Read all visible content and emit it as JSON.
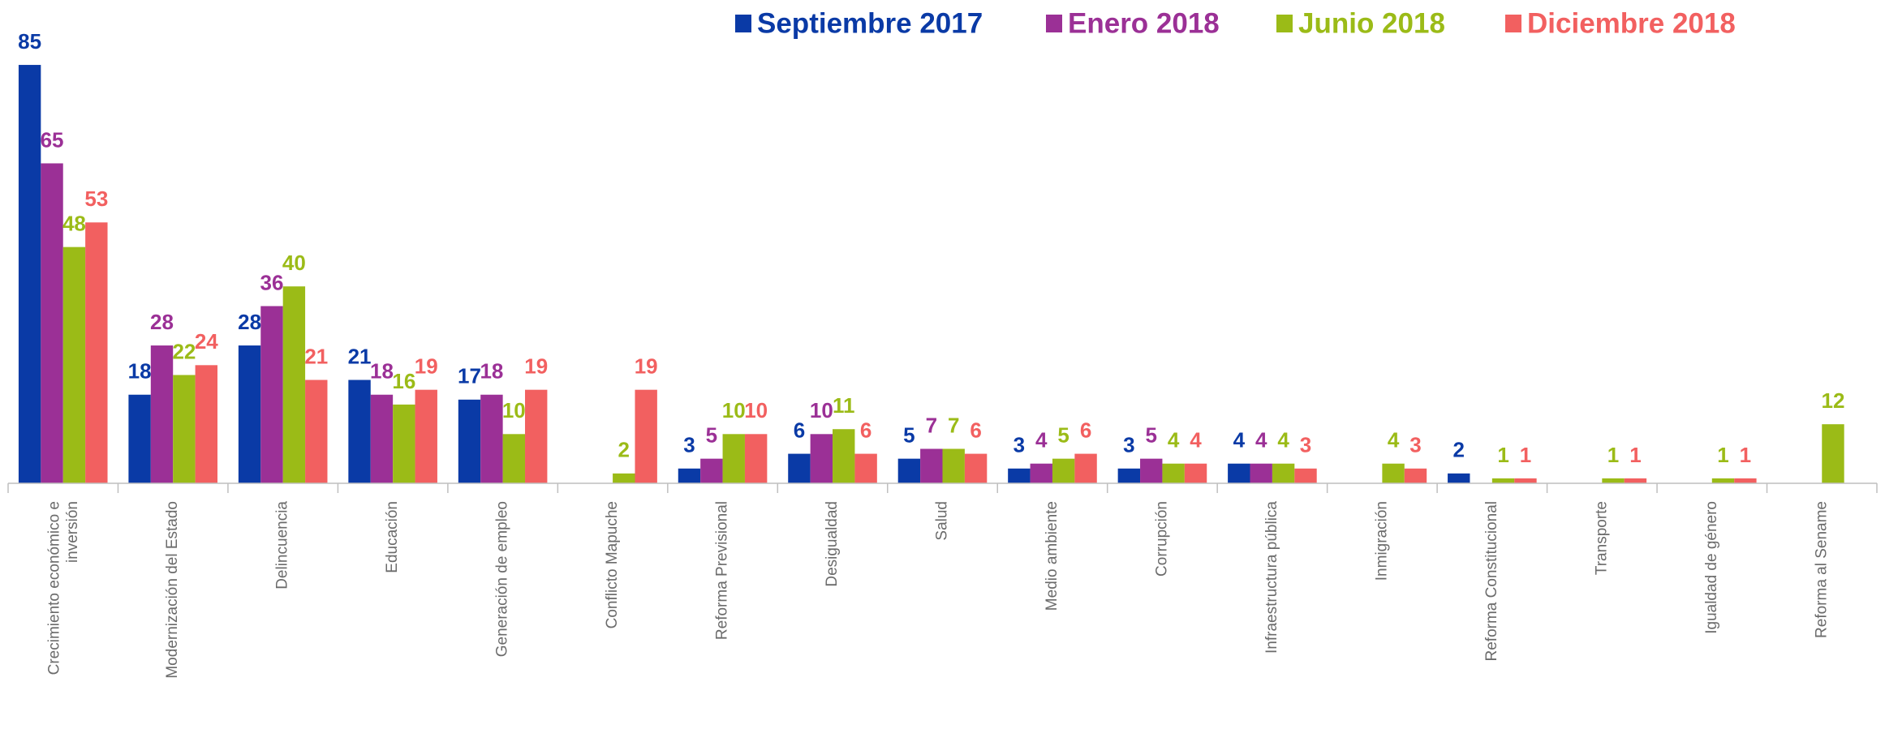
{
  "chart_data": {
    "type": "bar",
    "categories": [
      "Crecimiento económico e inversión",
      "Modernización del Estado",
      "Delincuencia",
      "Educación",
      "Generación de empleo",
      "Conflicto Mapuche",
      "Reforma Previsional",
      "Desigualdad",
      "Salud",
      "Medio ambiente",
      "Corrupción",
      "Infraestructura pública",
      "Inmigración",
      "Reforma Constitucional",
      "Transporte",
      "Igualdad de género",
      "Reforma al Sename"
    ],
    "series": [
      {
        "name": "Septiembre 2017",
        "color": "#0a3aa6",
        "values": [
          85,
          18,
          28,
          21,
          17,
          null,
          3,
          6,
          5,
          3,
          3,
          4,
          null,
          2,
          null,
          null,
          null
        ]
      },
      {
        "name": "Enero 2018",
        "color": "#9b3096",
        "values": [
          65,
          28,
          36,
          18,
          18,
          null,
          5,
          10,
          7,
          4,
          5,
          4,
          null,
          null,
          null,
          null,
          null
        ]
      },
      {
        "name": "Junio 2018",
        "color": "#9bbb17",
        "values": [
          48,
          22,
          40,
          16,
          10,
          2,
          10,
          11,
          7,
          5,
          4,
          4,
          4,
          1,
          1,
          1,
          12
        ]
      },
      {
        "name": "Diciembre 2018",
        "color": "#f26060",
        "values": [
          53,
          24,
          21,
          19,
          19,
          19,
          10,
          6,
          6,
          6,
          4,
          3,
          3,
          1,
          1,
          1,
          null
        ]
      }
    ],
    "legend": "top"
  }
}
